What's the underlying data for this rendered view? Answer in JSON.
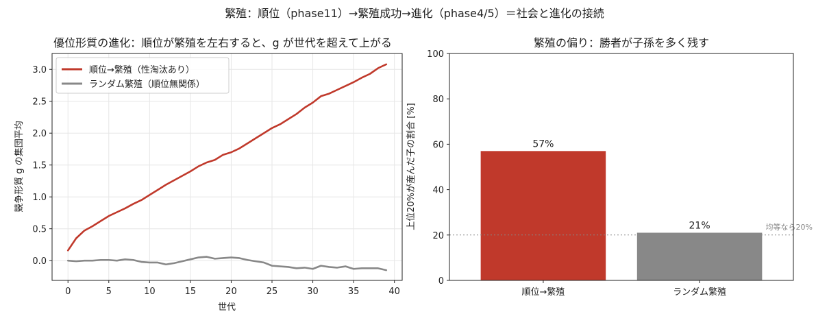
{
  "suptitle": "繁殖：順位（phase11）→繁殖成功→進化（phase4/5）＝社会と進化の接続",
  "colors": {
    "red": "#c0392b",
    "gray": "#888888",
    "grid": "#e6e6e6",
    "refline": "#888888"
  },
  "chart_data": [
    {
      "type": "line",
      "title": "優位形質の進化：順位が繁殖を左右すると、g が世代を超えて上がる",
      "xlabel": "世代",
      "ylabel": "競争形質 g の集団平均",
      "xlim": [
        -1.95,
        40.95
      ],
      "ylim": [
        -0.31,
        3.25
      ],
      "xticks": [
        0,
        5,
        10,
        15,
        20,
        25,
        30,
        35,
        40
      ],
      "xtick_labels": [
        "0",
        "5",
        "10",
        "15",
        "20",
        "25",
        "30",
        "35",
        "40"
      ],
      "yticks": [
        0.0,
        0.5,
        1.0,
        1.5,
        2.0,
        2.5,
        3.0
      ],
      "ytick_labels": [
        "0.0",
        "0.5",
        "1.0",
        "1.5",
        "2.0",
        "2.5",
        "3.0"
      ],
      "grid": true,
      "legend_position": "upper-left",
      "x": [
        0,
        1,
        2,
        3,
        4,
        5,
        6,
        7,
        8,
        9,
        10,
        11,
        12,
        13,
        14,
        15,
        16,
        17,
        18,
        19,
        20,
        21,
        22,
        23,
        24,
        25,
        26,
        27,
        28,
        29,
        30,
        31,
        32,
        33,
        34,
        35,
        36,
        37,
        38,
        39
      ],
      "series": [
        {
          "name": "順位→繁殖（性淘汰あり）",
          "color": "#c0392b",
          "values": [
            0.16,
            0.35,
            0.47,
            0.54,
            0.62,
            0.7,
            0.76,
            0.82,
            0.89,
            0.95,
            1.03,
            1.11,
            1.19,
            1.26,
            1.33,
            1.4,
            1.48,
            1.54,
            1.58,
            1.66,
            1.7,
            1.76,
            1.84,
            1.92,
            2.0,
            2.08,
            2.14,
            2.22,
            2.3,
            2.4,
            2.48,
            2.58,
            2.62,
            2.68,
            2.74,
            2.8,
            2.87,
            2.93,
            3.02,
            3.08
          ]
        },
        {
          "name": "ランダム繁殖（順位無関係）",
          "color": "#888888",
          "values": [
            0.0,
            -0.01,
            0.0,
            0.0,
            0.01,
            0.01,
            0.0,
            0.02,
            0.01,
            -0.02,
            -0.03,
            -0.03,
            -0.06,
            -0.04,
            -0.01,
            0.02,
            0.05,
            0.06,
            0.03,
            0.04,
            0.05,
            0.04,
            0.01,
            -0.01,
            -0.03,
            -0.08,
            -0.09,
            -0.1,
            -0.12,
            -0.11,
            -0.13,
            -0.08,
            -0.1,
            -0.11,
            -0.09,
            -0.13,
            -0.12,
            -0.12,
            -0.12,
            -0.15
          ]
        }
      ]
    },
    {
      "type": "bar",
      "title": "繁殖の偏り：勝者が子孫を多く残す",
      "ylabel": "上位20%が産んだ子の割合 [%]",
      "categories": [
        "順位→繁殖",
        "ランダム繁殖"
      ],
      "values": [
        57,
        21
      ],
      "value_labels": [
        "57%",
        "21%"
      ],
      "bar_colors": [
        "#c0392b",
        "#888888"
      ],
      "ylim": [
        0,
        100
      ],
      "yticks": [
        0,
        20,
        40,
        60,
        80,
        100
      ],
      "ytick_labels": [
        "0",
        "20",
        "40",
        "60",
        "80",
        "100"
      ],
      "reference_line": {
        "value": 20,
        "label": "均等なら20%"
      }
    }
  ]
}
